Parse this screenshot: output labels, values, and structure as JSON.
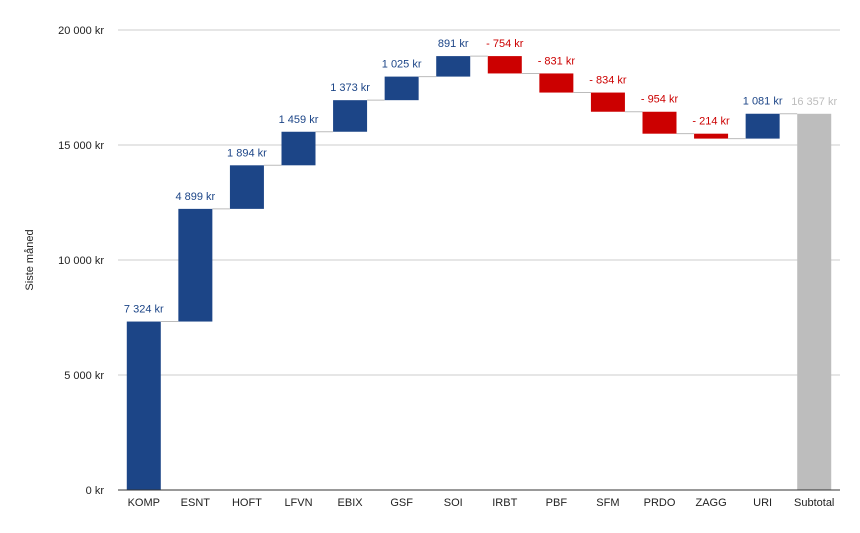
{
  "chart_data": {
    "type": "waterfall",
    "title": "",
    "xlabel": "",
    "ylabel": "Siste måned",
    "ylim": [
      0,
      20000
    ],
    "yticks": [
      0,
      5000,
      10000,
      15000,
      20000
    ],
    "ytick_labels": [
      "0 kr",
      "5 000 kr",
      "10 000 kr",
      "15 000 kr",
      "20 000 kr"
    ],
    "grid": true,
    "colors": {
      "increase": "#1c4587",
      "decrease": "#cc0000",
      "total": "#bdbdbd",
      "total_label": "#bdbdbd",
      "grid": "#cccccc",
      "axis": "#333333"
    },
    "categories": [
      "KOMP",
      "ESNT",
      "HOFT",
      "LFVN",
      "EBIX",
      "GSF",
      "SOI",
      "IRBT",
      "PBF",
      "SFM",
      "PRDO",
      "ZAGG",
      "URI",
      "Subtotal"
    ],
    "values": [
      7324,
      4899,
      1894,
      1459,
      1373,
      1025,
      891,
      -754,
      -831,
      -834,
      -954,
      -214,
      1081,
      16357
    ],
    "kinds": [
      "increase",
      "increase",
      "increase",
      "increase",
      "increase",
      "increase",
      "increase",
      "decrease",
      "decrease",
      "decrease",
      "decrease",
      "decrease",
      "increase",
      "total"
    ],
    "labels": [
      "7 324 kr",
      "4 899 kr",
      "1 894 kr",
      "1 459 kr",
      "1 373 kr",
      "1 025 kr",
      "891 kr",
      "- 754 kr",
      "- 831 kr",
      "- 834 kr",
      "- 954 kr",
      "- 214 kr",
      "1 081 kr",
      "16 357 kr"
    ]
  }
}
